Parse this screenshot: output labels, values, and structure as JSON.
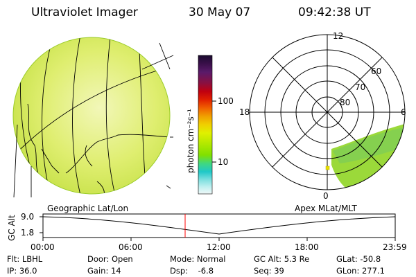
{
  "header": {
    "title": "Ultraviolet Imager",
    "date": "30 May 07",
    "time": "09:42:38 UT"
  },
  "colorbar": {
    "unit_label": "photon cm⁻²s⁻¹",
    "ticks": [
      "100",
      "10"
    ],
    "colors": [
      "#1a0b2e",
      "#3a0f4a",
      "#5a1a6a",
      "#8a1040",
      "#c00010",
      "#e02000",
      "#f06000",
      "#f0a000",
      "#f0d000",
      "#e0f000",
      "#b0e800",
      "#80e000",
      "#40d880",
      "#20c8c8",
      "#80e0e0",
      "#c0f0f0",
      "#f0f8f8"
    ]
  },
  "polar_plot": {
    "mlt_labels": [
      "12",
      "18",
      "6",
      "0"
    ],
    "mlat_labels": [
      "60",
      "70",
      "80"
    ]
  },
  "timeline": {
    "left_label": "Geographic Lat/Lon",
    "right_label": "Apex MLat/MLT",
    "yaxis_label": "GC Alt",
    "ytick_top": "9.0",
    "ytick_bottom": "1.8",
    "xticks": [
      "00:00",
      "06:00",
      "12:00",
      "18:00",
      "23:59"
    ],
    "marker_color": "#ff0000"
  },
  "info": {
    "flt": "Flt: LBHL",
    "ip": "IP: 36.0",
    "door": "Door: Open",
    "gain": "Gain: 14",
    "mode": "Mode: Normal",
    "dsp": "Dsp:    -6.8",
    "gcalt": "GC Alt: 5.3 Re",
    "seq": "Seq: 39",
    "glat": "GLat: -50.8",
    "glon": "GLon: 277.1"
  }
}
